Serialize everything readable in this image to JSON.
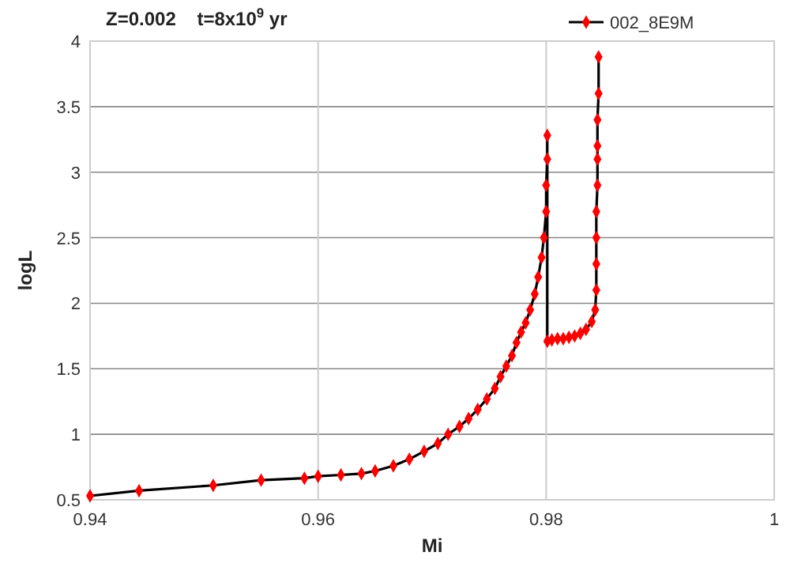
{
  "chart_data": {
    "type": "line",
    "title": "Z=0.002    t=8x10$^{9}$ yr",
    "xlabel": "Mi",
    "ylabel": "logL",
    "xlim": [
      0.94,
      1
    ],
    "xticks": [
      0.94,
      0.96,
      0.98,
      1
    ],
    "ylim": [
      0.5,
      4
    ],
    "yticks": [
      0.5,
      1,
      1.5,
      2,
      2.5,
      3,
      3.5,
      4
    ],
    "grid": true,
    "legend": "top right",
    "marker": "diamond",
    "line_style": "solid",
    "series": [
      {
        "name": "002_8E9M",
        "color": "#ff0000",
        "x": [
          0.94,
          0.9443,
          0.9508,
          0.955,
          0.9588,
          0.96,
          0.962,
          0.9638,
          0.965,
          0.9666,
          0.968,
          0.9693,
          0.9705,
          0.9714,
          0.9724,
          0.9732,
          0.974,
          0.9748,
          0.9755,
          0.976,
          0.9765,
          0.977,
          0.9774,
          0.9778,
          0.9782,
          0.9786,
          0.979,
          0.9793,
          0.9796,
          0.9798,
          0.98,
          0.98,
          0.9801,
          0.9801,
          0.9801,
          0.9805,
          0.981,
          0.9815,
          0.982,
          0.9825,
          0.983,
          0.9835,
          0.984,
          0.9843,
          0.9844,
          0.9844,
          0.9844,
          0.9844,
          0.9845,
          0.9845,
          0.9845,
          0.9845,
          0.9846,
          0.9846
        ],
        "values": [
          0.53,
          0.57,
          0.61,
          0.65,
          0.665,
          0.68,
          0.69,
          0.7,
          0.72,
          0.76,
          0.81,
          0.87,
          0.93,
          1.0,
          1.06,
          1.12,
          1.19,
          1.27,
          1.35,
          1.44,
          1.52,
          1.6,
          1.7,
          1.78,
          1.85,
          1.95,
          2.07,
          2.2,
          2.35,
          2.5,
          2.7,
          2.9,
          3.1,
          3.28,
          1.71,
          1.72,
          1.73,
          1.73,
          1.74,
          1.75,
          1.77,
          1.8,
          1.86,
          1.95,
          2.1,
          2.3,
          2.5,
          2.7,
          2.9,
          3.1,
          3.2,
          3.4,
          3.6,
          3.88
        ]
      }
    ]
  }
}
